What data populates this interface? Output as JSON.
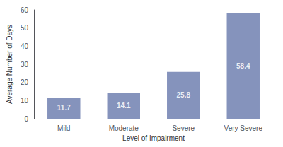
{
  "chart_data": {
    "type": "bar",
    "categories": [
      "Mild",
      "Moderate",
      "Severe",
      "Very Severe"
    ],
    "values": [
      11.7,
      14.1,
      25.8,
      58.4
    ],
    "color": "#7080b0",
    "xlabel": "Level of Impairment",
    "ylabel": "Average Number of Days",
    "ylim": [
      0,
      60
    ],
    "yticks": [
      0,
      10,
      20,
      30,
      40,
      50,
      60
    ],
    "grid": false,
    "data_labels": true
  }
}
